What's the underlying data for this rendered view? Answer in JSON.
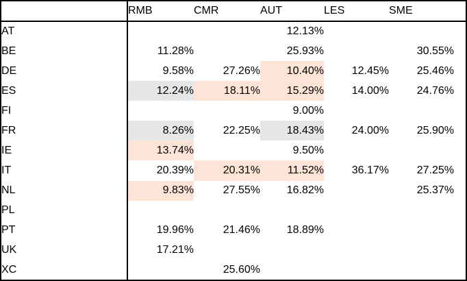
{
  "colors": {
    "border": "#000000",
    "text": "#000000",
    "background": "#ffffff",
    "peach": "#FCE4D6",
    "gray": "#E7E6E6"
  },
  "table": {
    "corner_label": "",
    "columns": [
      "RMB",
      "CMR",
      "AUT",
      "LES",
      "SME"
    ],
    "rows": [
      {
        "label": "AT",
        "cells": [
          {
            "v": ""
          },
          {
            "v": ""
          },
          {
            "v": "12.13%"
          },
          {
            "v": ""
          },
          {
            "v": ""
          }
        ]
      },
      {
        "label": "BE",
        "cells": [
          {
            "v": "11.28%"
          },
          {
            "v": ""
          },
          {
            "v": "25.93%"
          },
          {
            "v": ""
          },
          {
            "v": "30.55%"
          }
        ]
      },
      {
        "label": "DE",
        "cells": [
          {
            "v": "9.58%"
          },
          {
            "v": "27.26%"
          },
          {
            "v": "10.40%",
            "h": "peach"
          },
          {
            "v": "12.45%"
          },
          {
            "v": "25.46%"
          }
        ]
      },
      {
        "label": "ES",
        "cells": [
          {
            "v": "12.24%",
            "h": "gray"
          },
          {
            "v": "18.11%",
            "h": "peach"
          },
          {
            "v": "15.29%",
            "h": "peach"
          },
          {
            "v": "14.00%"
          },
          {
            "v": "24.76%"
          }
        ]
      },
      {
        "label": "FI",
        "cells": [
          {
            "v": ""
          },
          {
            "v": ""
          },
          {
            "v": "9.00%"
          },
          {
            "v": ""
          },
          {
            "v": ""
          }
        ]
      },
      {
        "label": "FR",
        "cells": [
          {
            "v": "8.26%",
            "h": "gray"
          },
          {
            "v": "22.25%"
          },
          {
            "v": "18.43%",
            "h": "gray"
          },
          {
            "v": "24.00%"
          },
          {
            "v": "25.90%"
          }
        ]
      },
      {
        "label": "IE",
        "cells": [
          {
            "v": "13.74%",
            "h": "peach"
          },
          {
            "v": ""
          },
          {
            "v": "9.50%"
          },
          {
            "v": ""
          },
          {
            "v": ""
          }
        ]
      },
      {
        "label": "IT",
        "cells": [
          {
            "v": "20.39%"
          },
          {
            "v": "20.31%",
            "h": "peach"
          },
          {
            "v": "11.52%",
            "h": "peach"
          },
          {
            "v": "36.17%"
          },
          {
            "v": "27.25%"
          }
        ]
      },
      {
        "label": "NL",
        "cells": [
          {
            "v": "9.83%",
            "h": "peach"
          },
          {
            "v": "27.55%"
          },
          {
            "v": "16.82%"
          },
          {
            "v": ""
          },
          {
            "v": "25.37%"
          }
        ]
      },
      {
        "label": "PL",
        "cells": [
          {
            "v": ""
          },
          {
            "v": ""
          },
          {
            "v": ""
          },
          {
            "v": ""
          },
          {
            "v": ""
          }
        ]
      },
      {
        "label": "PT",
        "cells": [
          {
            "v": "19.96%"
          },
          {
            "v": "21.46%"
          },
          {
            "v": "18.89%"
          },
          {
            "v": ""
          },
          {
            "v": ""
          }
        ]
      },
      {
        "label": "UK",
        "cells": [
          {
            "v": "17.21%"
          },
          {
            "v": ""
          },
          {
            "v": ""
          },
          {
            "v": ""
          },
          {
            "v": ""
          }
        ]
      },
      {
        "label": "XC",
        "cells": [
          {
            "v": ""
          },
          {
            "v": "25.60%"
          },
          {
            "v": ""
          },
          {
            "v": ""
          },
          {
            "v": ""
          }
        ]
      }
    ]
  }
}
